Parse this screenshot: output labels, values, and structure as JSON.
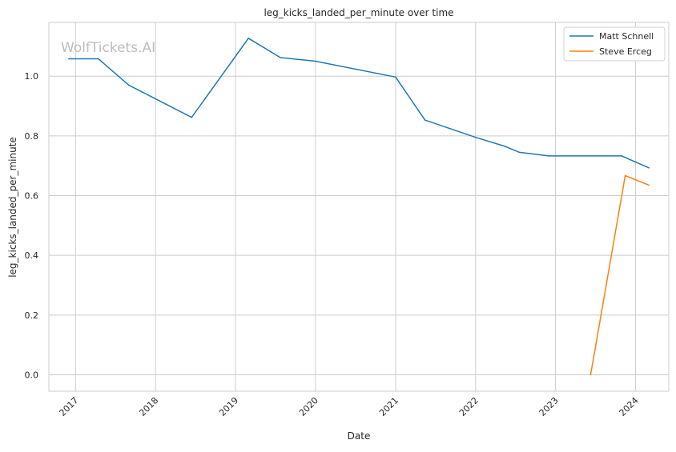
{
  "chart_data": {
    "type": "line",
    "title": "leg_kicks_landed_per_minute over time",
    "xlabel": "Date",
    "ylabel": "leg_kicks_landed_per_minute",
    "watermark": "WolfTickets.AI",
    "x_ticks": [
      "2017",
      "2018",
      "2019",
      "2020",
      "2021",
      "2022",
      "2023",
      "2024"
    ],
    "y_ticks": [
      "0.0",
      "0.2",
      "0.4",
      "0.6",
      "0.8",
      "1.0"
    ],
    "xlim": [
      "2016-09-01",
      "2024-06-01"
    ],
    "ylim": [
      -0.055,
      1.18
    ],
    "grid": true,
    "legend_position": "top-right",
    "series": [
      {
        "name": "Matt Schnell",
        "color": "#1f77b4",
        "points": [
          {
            "x": "2016-12-01",
            "y": 1.058
          },
          {
            "x": "2017-04-15",
            "y": 1.058
          },
          {
            "x": "2017-09-01",
            "y": 0.97
          },
          {
            "x": "2018-06-15",
            "y": 0.862
          },
          {
            "x": "2019-03-01",
            "y": 1.127
          },
          {
            "x": "2019-07-25",
            "y": 1.062
          },
          {
            "x": "2020-01-01",
            "y": 1.05
          },
          {
            "x": "2021-01-01",
            "y": 0.997
          },
          {
            "x": "2021-05-15",
            "y": 0.853
          },
          {
            "x": "2022-01-01",
            "y": 0.795
          },
          {
            "x": "2022-05-15",
            "y": 0.765
          },
          {
            "x": "2022-07-20",
            "y": 0.745
          },
          {
            "x": "2022-12-01",
            "y": 0.733
          },
          {
            "x": "2023-10-30",
            "y": 0.733
          },
          {
            "x": "2024-03-02",
            "y": 0.693
          }
        ]
      },
      {
        "name": "Steve Erceg",
        "color": "#ff7f0e",
        "points": [
          {
            "x": "2023-06-10",
            "y": 0.0
          },
          {
            "x": "2023-11-15",
            "y": 0.667
          },
          {
            "x": "2024-03-02",
            "y": 0.635
          }
        ]
      }
    ]
  }
}
